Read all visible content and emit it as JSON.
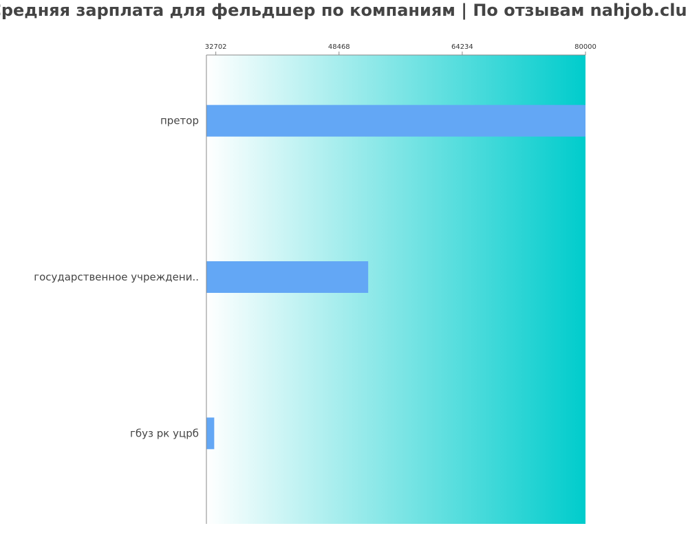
{
  "chart_data": {
    "type": "bar",
    "orientation": "horizontal",
    "title": "Средняя зарплата для фельдшер по компаниям  | По отзывам nahjob.club",
    "xlabel": "",
    "ylabel": "",
    "x_ticks": [
      "32702",
      "48468",
      "64234",
      "80000"
    ],
    "xlim": [
      31500,
      80000
    ],
    "categories": [
      "претор",
      "государственное учреждени..",
      "гбуз рк уцрб"
    ],
    "values": [
      80000,
      52200,
      32500
    ],
    "grid": false,
    "legend": "none",
    "colors": {
      "bar": "#63a7f5",
      "background_start": "#ffffff",
      "background_end": "#00cccc",
      "title": "#444444",
      "axis": "#888888"
    }
  }
}
